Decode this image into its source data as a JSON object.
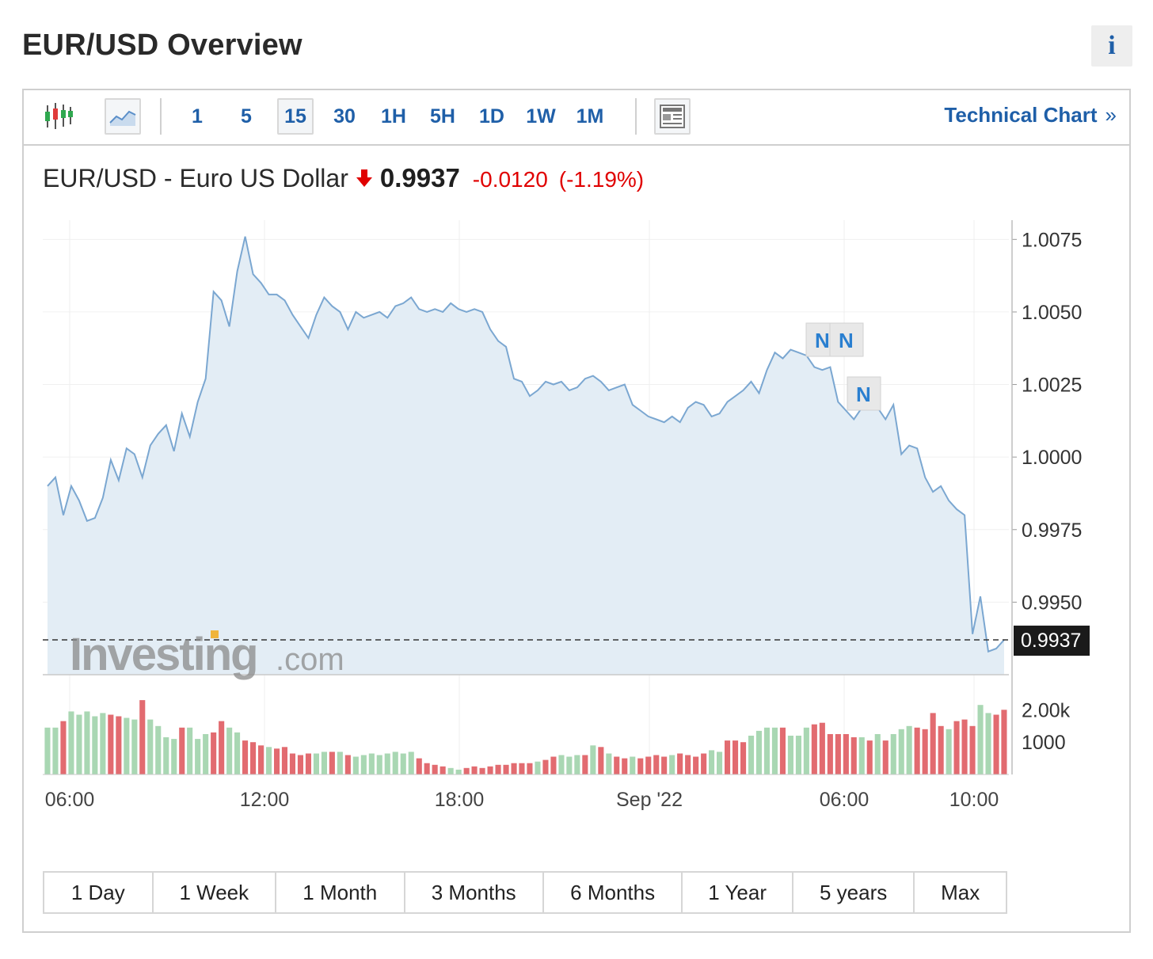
{
  "header": {
    "title": "EUR/USD Overview",
    "info_label": "i"
  },
  "toolbar": {
    "timeframes": [
      "1",
      "5",
      "15",
      "30",
      "1H",
      "5H",
      "1D",
      "1W",
      "1M"
    ],
    "active_timeframe": "15",
    "technical_chart_label": "Technical Chart",
    "technical_chart_arrow": "»",
    "icons": [
      "candlestick-icon",
      "area-chart-icon",
      "news-icon"
    ]
  },
  "quote": {
    "name": "EUR/USD - Euro US Dollar",
    "direction_icon": "down-arrow-icon",
    "price": "0.9937",
    "change": "-0.0120",
    "change_pct": "(-1.19%)",
    "down_color": "#e00000"
  },
  "watermark": {
    "brand": "Investing",
    "suffix": ".com"
  },
  "news_markers": [
    "N",
    "N",
    "N"
  ],
  "colors": {
    "line": "#7ba7d1",
    "area": "#e3edf5",
    "vol_up": "#a9d7b3",
    "vol_down": "#e26b70",
    "link": "#1f5fa8"
  },
  "ranges": [
    "1 Day",
    "1 Week",
    "1 Month",
    "3 Months",
    "6 Months",
    "1 Year",
    "5 years",
    "Max"
  ],
  "chart_data": {
    "type": "area",
    "title": "EUR/USD - Euro US Dollar",
    "x_tick_labels": [
      "06:00",
      "12:00",
      "18:00",
      "Sep '22",
      "06:00",
      "10:00"
    ],
    "y_tick_labels": [
      "1.0075",
      "1.0050",
      "1.0025",
      "1.0000",
      "0.9975",
      "0.9950"
    ],
    "ylim": [
      0.9925,
      1.008
    ],
    "last_value_label": "0.9937",
    "price_series": {
      "name": "EUR/USD",
      "values": [
        0.999,
        0.9993,
        0.998,
        0.999,
        0.9985,
        0.9978,
        0.9979,
        0.9986,
        0.9999,
        0.9992,
        1.0003,
        1.0001,
        0.9993,
        1.0004,
        1.0008,
        1.0011,
        1.0002,
        1.0015,
        1.0007,
        1.0019,
        1.0027,
        1.0057,
        1.0054,
        1.0045,
        1.0064,
        1.0076,
        1.0063,
        1.006,
        1.0056,
        1.0056,
        1.0054,
        1.0049,
        1.0045,
        1.0041,
        1.0049,
        1.0055,
        1.0052,
        1.005,
        1.0044,
        1.005,
        1.0048,
        1.0049,
        1.005,
        1.0048,
        1.0052,
        1.0053,
        1.0055,
        1.0051,
        1.005,
        1.0051,
        1.005,
        1.0053,
        1.0051,
        1.005,
        1.0051,
        1.005,
        1.0044,
        1.004,
        1.0038,
        1.0027,
        1.0026,
        1.0021,
        1.0023,
        1.0026,
        1.0025,
        1.0026,
        1.0023,
        1.0024,
        1.0027,
        1.0028,
        1.0026,
        1.0023,
        1.0024,
        1.0025,
        1.0018,
        1.0016,
        1.0014,
        1.0013,
        1.0012,
        1.0014,
        1.0012,
        1.0017,
        1.0019,
        1.0018,
        1.0014,
        1.0015,
        1.0019,
        1.0021,
        1.0023,
        1.0026,
        1.0022,
        1.003,
        1.0036,
        1.0034,
        1.0037,
        1.0036,
        1.0035,
        1.0031,
        1.003,
        1.0031,
        1.0019,
        1.0016,
        1.0013,
        1.0017,
        1.0019,
        1.0017,
        1.0013,
        1.0018,
        1.0001,
        1.0004,
        1.0003,
        0.9993,
        0.9988,
        0.999,
        0.9985,
        0.9982,
        0.998,
        0.9939,
        0.9952,
        0.9933,
        0.9934,
        0.9937
      ]
    },
    "volume_series": {
      "name": "Volume",
      "y_tick_labels": [
        "2.00k",
        "1000"
      ],
      "ylim": [
        0,
        2400
      ],
      "values": [
        1450,
        1450,
        1650,
        1950,
        1850,
        1950,
        1800,
        1900,
        1850,
        1800,
        1750,
        1700,
        2300,
        1700,
        1500,
        1150,
        1100,
        1450,
        1450,
        1100,
        1250,
        1300,
        1650,
        1450,
        1300,
        1050,
        1000,
        900,
        850,
        800,
        850,
        650,
        600,
        650,
        650,
        700,
        700,
        700,
        600,
        550,
        600,
        650,
        600,
        650,
        700,
        650,
        700,
        500,
        350,
        300,
        250,
        200,
        150,
        200,
        250,
        200,
        250,
        300,
        300,
        350,
        350,
        350,
        400,
        450,
        550,
        600,
        550,
        600,
        600,
        900,
        850,
        650,
        550,
        500,
        550,
        500,
        550,
        600,
        550,
        600,
        650,
        600,
        550,
        650,
        750,
        700,
        1050,
        1050,
        1000,
        1200,
        1350,
        1450,
        1450,
        1450,
        1200,
        1200,
        1450,
        1550,
        1600,
        1250,
        1250,
        1250,
        1150,
        1150,
        1050,
        1250,
        1050,
        1250,
        1400,
        1500,
        1450,
        1400,
        1900,
        1500,
        1400,
        1650,
        1700,
        1500,
        2150,
        1900,
        1850,
        2000
      ],
      "up": [
        true,
        true,
        false,
        true,
        true,
        true,
        true,
        true,
        false,
        false,
        true,
        true,
        false,
        true,
        true,
        true,
        true,
        false,
        true,
        true,
        true,
        false,
        false,
        true,
        true,
        false,
        false,
        false,
        true,
        false,
        false,
        false,
        false,
        false,
        true,
        true,
        false,
        true,
        false,
        true,
        true,
        true,
        true,
        true,
        true,
        true,
        true,
        false,
        false,
        false,
        false,
        true,
        true,
        false,
        false,
        false,
        false,
        false,
        false,
        false,
        false,
        false,
        true,
        false,
        false,
        true,
        true,
        true,
        false,
        true,
        false,
        true,
        false,
        false,
        true,
        false,
        false,
        false,
        false,
        true,
        false,
        false,
        false,
        false,
        true,
        true,
        false,
        false,
        false,
        true,
        true,
        true,
        true,
        false,
        true,
        true,
        true,
        false,
        false,
        false,
        false,
        false,
        false,
        true,
        false,
        true,
        false,
        true,
        true,
        true,
        false,
        false,
        false,
        false,
        true,
        false,
        false,
        false,
        true,
        true,
        false,
        false
      ]
    }
  }
}
